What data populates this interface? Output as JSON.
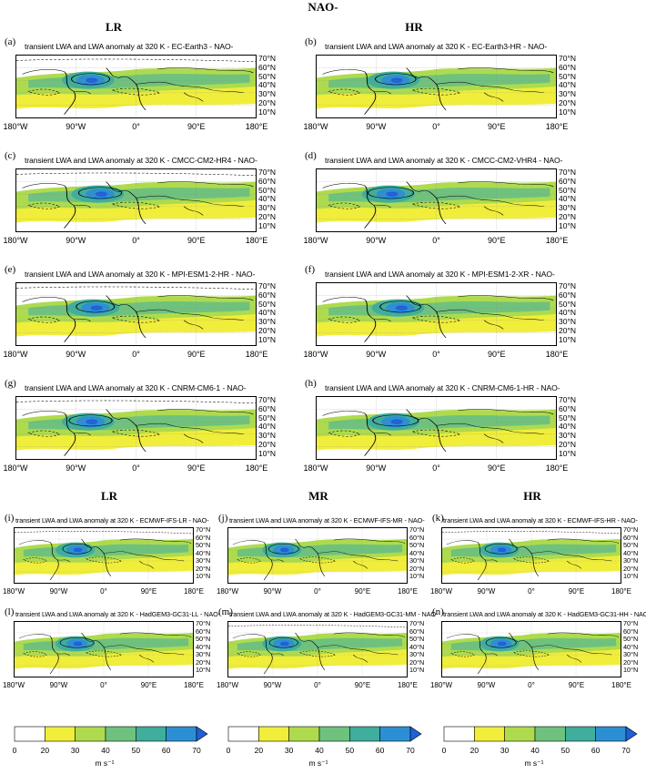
{
  "title": "NAO-",
  "top_headers": {
    "left": "LR",
    "right": "HR"
  },
  "bottom_headers": {
    "left": "LR",
    "mid": "MR",
    "right": "HR"
  },
  "lat_labels": [
    "70°N",
    "60°N",
    "50°N",
    "40°N",
    "30°N",
    "20°N",
    "10°N"
  ],
  "lon_labels": [
    "180°W",
    "90°W",
    "0°",
    "90°E",
    "180°E"
  ],
  "panels": [
    {
      "label": "(a)",
      "title": "transient LWA and LWA anomaly at 320 K - EC-Earth3 - NAO-"
    },
    {
      "label": "(b)",
      "title": "transient LWA and LWA anomaly at 320 K - EC-Earth3-HR - NAO-"
    },
    {
      "label": "(c)",
      "title": "transient LWA and LWA anomaly at 320 K - CMCC-CM2-HR4 - NAO-"
    },
    {
      "label": "(d)",
      "title": "transient LWA and LWA anomaly at 320 K - CMCC-CM2-VHR4 - NAO-"
    },
    {
      "label": "(e)",
      "title": "transient LWA and LWA anomaly at 320 K - MPI-ESM1-2-HR - NAO-"
    },
    {
      "label": "(f)",
      "title": "transient LWA and LWA anomaly at 320 K - MPI-ESM1-2-XR - NAO-"
    },
    {
      "label": "(g)",
      "title": "transient LWA and LWA anomaly at 320 K - CNRM-CM6-1 - NAO-"
    },
    {
      "label": "(h)",
      "title": "transient LWA and LWA anomaly at 320 K - CNRM-CM6-1-HR - NAO-"
    },
    {
      "label": "(i)",
      "title": "transient LWA and LWA anomaly at 320 K - ECMWF-IFS-LR - NAO-"
    },
    {
      "label": "(j)",
      "title": "transient LWA and LWA anomaly at 320 K - ECMWF-IFS-MR - NAO-"
    },
    {
      "label": "(k)",
      "title": "transient LWA and LWA anomaly at 320 K - ECMWF-IFS-HR - NAO-"
    },
    {
      "label": "(l)",
      "title": "transient LWA and LWA anomaly at 320 K - HadGEM3-GC31-LL - NAO-"
    },
    {
      "label": "(m)",
      "title": "transient LWA and LWA anomaly at 320 K - HadGEM3-GC31-MM - NAO-"
    },
    {
      "label": "(n)",
      "title": "transient LWA and LWA anomaly at 320 K - HadGEM3-GC31-HH - NAO-"
    }
  ],
  "colorbar": {
    "ticks": [
      "0",
      "20",
      "30",
      "40",
      "50",
      "60",
      "70"
    ],
    "unit": "m s⁻¹",
    "colors": [
      "#ffffff",
      "#f0ee3a",
      "#aedb4e",
      "#6fc27d",
      "#3fae9c",
      "#2d8fd3",
      "#1f5fd8"
    ]
  },
  "chart_data": {
    "type": "heatmap",
    "field": "transient LWA and LWA anomaly at 320 K",
    "levels": [
      0,
      20,
      30,
      40,
      50,
      60,
      70
    ],
    "units": "m s⁻¹",
    "lon_range": [
      -180,
      180
    ],
    "lat_range": [
      10,
      80
    ],
    "extend": "max",
    "contours": "LWA anomaly (solid positive, dashed negative)"
  }
}
